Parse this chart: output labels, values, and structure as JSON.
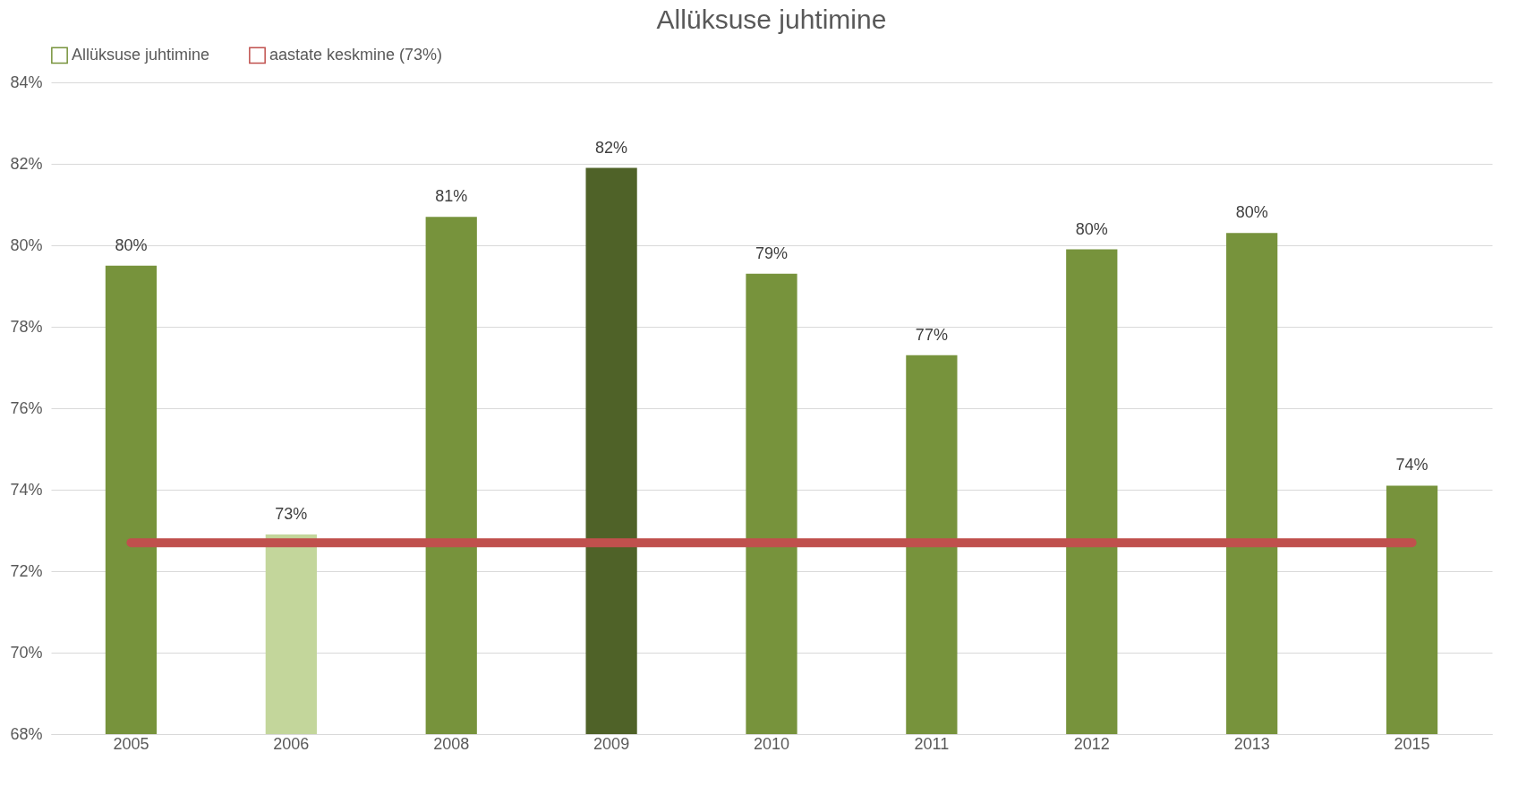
{
  "chart_data": {
    "type": "bar",
    "title": "Allüksuse juhtimine",
    "categories": [
      "2005",
      "2006",
      "2008",
      "2009",
      "2010",
      "2011",
      "2012",
      "2013",
      "2015"
    ],
    "series": [
      {
        "name": "Allüksuse juhtimine",
        "color": "#77933c",
        "colors": [
          "#77933c",
          "#c3d69b",
          "#77933c",
          "#4f6228",
          "#77933c",
          "#77933c",
          "#77933c",
          "#77933c",
          "#77933c"
        ],
        "values": [
          79.5,
          72.9,
          80.7,
          81.9,
          79.3,
          77.3,
          79.9,
          80.3,
          74.1
        ],
        "value_labels": [
          "80%",
          "73%",
          "81%",
          "82%",
          "79%",
          "77%",
          "80%",
          "80%",
          "74%"
        ]
      },
      {
        "type": "line",
        "name": "aastate keskmine (73%)",
        "color": "#c0504d",
        "values": [
          72.7,
          72.7,
          72.7,
          72.7,
          72.7,
          72.7,
          72.7,
          72.7,
          72.7
        ]
      }
    ],
    "ylim": [
      68,
      84
    ],
    "yticks": [
      {
        "value": 68,
        "label": "68%"
      },
      {
        "value": 70,
        "label": "70%"
      },
      {
        "value": 72,
        "label": "72%"
      },
      {
        "value": 74,
        "label": "74%"
      },
      {
        "value": 76,
        "label": "76%"
      },
      {
        "value": 78,
        "label": "78%"
      },
      {
        "value": 80,
        "label": "80%"
      },
      {
        "value": 82,
        "label": "82%"
      },
      {
        "value": 84,
        "label": "84%"
      }
    ],
    "grid": "y",
    "legend": "top",
    "marker": "none"
  }
}
